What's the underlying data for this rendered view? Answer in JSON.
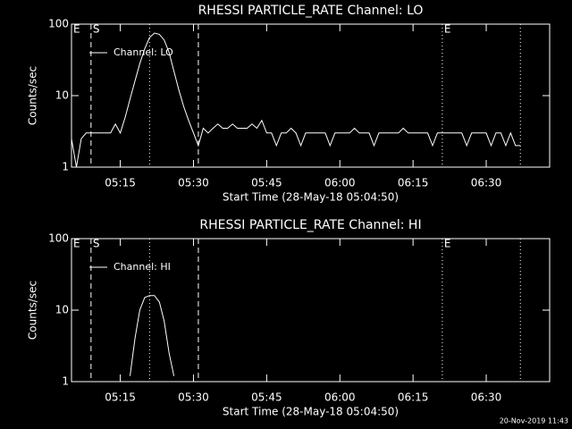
{
  "chart_data": [
    {
      "type": "line",
      "title": "RHESSI PARTICLE_RATE Channel: LO",
      "xlabel": "Start Time (28-May-18 05:04:50)",
      "ylabel": "Counts/sec",
      "log_y": true,
      "xlim": [
        "05:05",
        "06:43"
      ],
      "xticks": [
        "05:15",
        "05:30",
        "05:45",
        "06:00",
        "06:15",
        "06:30"
      ],
      "ylim": [
        1,
        100
      ],
      "yticks": [
        1,
        10,
        100
      ],
      "legend": "upper left",
      "x": [
        "05:05",
        "05:06",
        "05:07",
        "05:08",
        "05:09",
        "05:10",
        "05:11",
        "05:12",
        "05:13",
        "05:14",
        "05:15",
        "05:16",
        "05:17",
        "05:18",
        "05:19",
        "05:20",
        "05:21",
        "05:22",
        "05:23",
        "05:24",
        "05:25",
        "05:26",
        "05:27",
        "05:28",
        "05:29",
        "05:30",
        "05:31",
        "05:32",
        "05:33",
        "05:34",
        "05:35",
        "05:36",
        "05:37",
        "05:38",
        "05:39",
        "05:40",
        "05:41",
        "05:42",
        "05:43",
        "05:44",
        "05:45",
        "05:46",
        "05:47",
        "05:48",
        "05:49",
        "05:50",
        "05:51",
        "05:52",
        "05:53",
        "05:54",
        "05:55",
        "05:56",
        "05:57",
        "05:58",
        "05:59",
        "06:00",
        "06:01",
        "06:02",
        "06:03",
        "06:04",
        "06:05",
        "06:06",
        "06:07",
        "06:08",
        "06:09",
        "06:10",
        "06:11",
        "06:12",
        "06:13",
        "06:14",
        "06:15",
        "06:16",
        "06:17",
        "06:18",
        "06:19",
        "06:20",
        "06:21",
        "06:22",
        "06:23",
        "06:24",
        "06:25",
        "06:26",
        "06:27",
        "06:28",
        "06:29",
        "06:30",
        "06:31",
        "06:32",
        "06:33",
        "06:34",
        "06:35",
        "06:36",
        "06:37"
      ],
      "series": [
        {
          "name": "Channel: LO",
          "color": "#ffffff",
          "values": [
            2.5,
            1,
            2.5,
            3,
            3,
            3,
            3,
            3,
            3,
            4,
            3,
            5,
            9,
            16,
            28,
            45,
            65,
            75,
            72,
            60,
            40,
            22,
            12,
            7,
            4.5,
            3,
            2,
            3.5,
            3,
            3.5,
            4,
            3.5,
            3.5,
            4,
            3.5,
            3.5,
            3.5,
            4,
            3.5,
            4.5,
            3,
            3,
            2,
            3,
            3,
            3.5,
            3,
            2,
            3,
            3,
            3,
            3,
            3,
            2,
            3,
            3,
            3,
            3,
            3.5,
            3,
            3,
            3,
            2,
            3,
            3,
            3,
            3,
            3,
            3.5,
            3,
            3,
            3,
            3,
            3,
            2,
            3,
            3,
            3,
            3,
            3,
            3,
            2,
            3,
            3,
            3,
            3,
            2,
            3,
            3,
            2,
            3,
            2,
            2
          ]
        }
      ],
      "vlines": [
        {
          "x": "05:09",
          "style": "dashed"
        },
        {
          "x": "05:21",
          "style": "dotted"
        },
        {
          "x": "05:31",
          "style": "dashed"
        },
        {
          "x": "06:21",
          "style": "dotted"
        },
        {
          "x": "06:37",
          "style": "dotted"
        }
      ],
      "annotations": [
        {
          "text": "E",
          "x": "05:05"
        },
        {
          "text": "S",
          "x": "05:09"
        },
        {
          "text": "E",
          "x": "06:21"
        }
      ]
    },
    {
      "type": "line",
      "title": "RHESSI PARTICLE_RATE Channel: HI",
      "xlabel": "Start Time (28-May-18 05:04:50)",
      "ylabel": "Counts/sec",
      "log_y": true,
      "xlim": [
        "05:05",
        "06:43"
      ],
      "xticks": [
        "05:15",
        "05:30",
        "05:45",
        "06:00",
        "06:15",
        "06:30"
      ],
      "ylim": [
        1,
        100
      ],
      "yticks": [
        1,
        10,
        100
      ],
      "legend": "upper left",
      "x": [
        "05:17",
        "05:18",
        "05:19",
        "05:20",
        "05:21",
        "05:22",
        "05:23",
        "05:24",
        "05:25",
        "05:26"
      ],
      "series": [
        {
          "name": "Channel: HI",
          "color": "#ffffff",
          "values": [
            1.2,
            4,
            10,
            15,
            16,
            16,
            13,
            7,
            2.5,
            1.2
          ]
        }
      ],
      "vlines": [
        {
          "x": "05:09",
          "style": "dashed"
        },
        {
          "x": "05:21",
          "style": "dotted"
        },
        {
          "x": "05:31",
          "style": "dashed"
        },
        {
          "x": "06:21",
          "style": "dotted"
        },
        {
          "x": "06:37",
          "style": "dotted"
        }
      ],
      "annotations": [
        {
          "text": "E",
          "x": "05:05"
        },
        {
          "text": "S",
          "x": "05:09"
        },
        {
          "text": "E",
          "x": "06:21"
        }
      ]
    }
  ],
  "footer": "20-Nov-2019 11:43"
}
